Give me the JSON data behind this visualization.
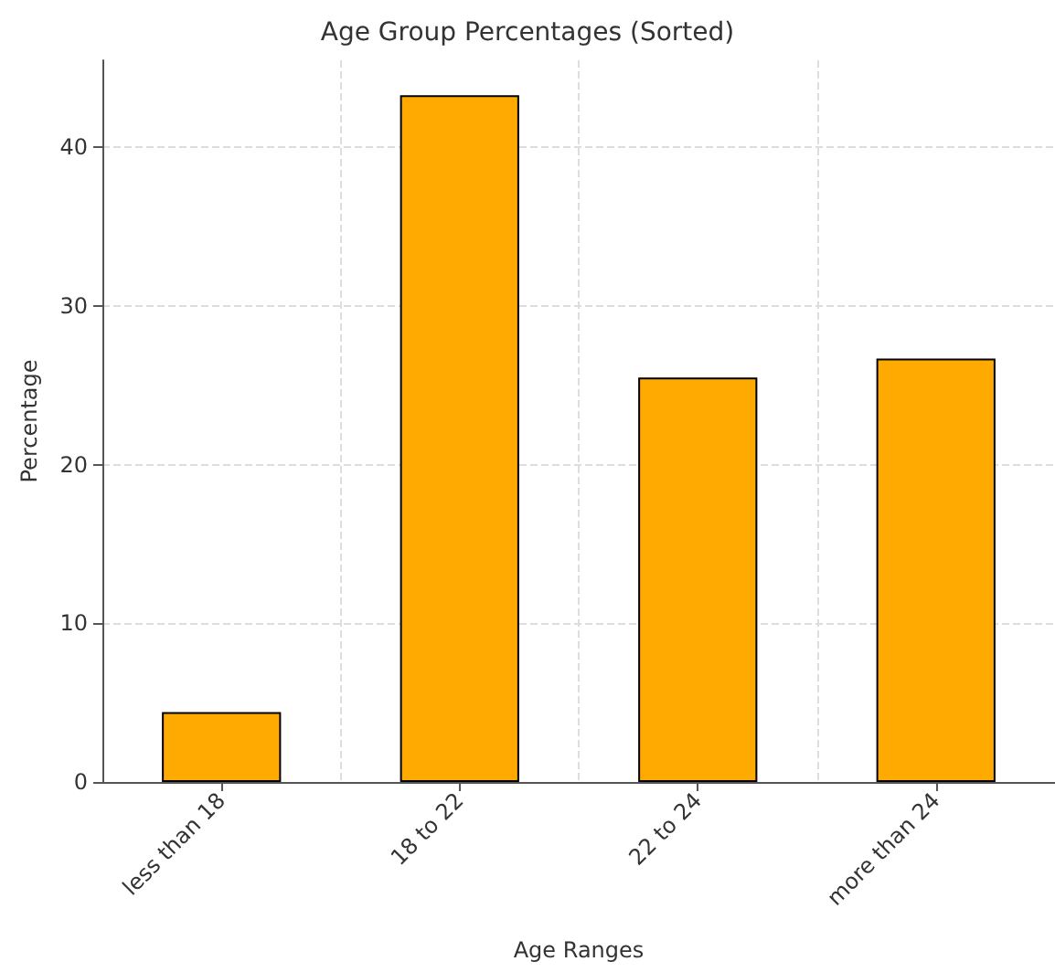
{
  "chart_data": {
    "type": "bar",
    "title": "Age Group Percentages (Sorted)",
    "xlabel": "Age Ranges",
    "ylabel": "Percentage",
    "categories": [
      "less than 18",
      "18 to 22",
      "22 to 24",
      "more than 24"
    ],
    "values": [
      4.4,
      43.3,
      25.5,
      26.7
    ],
    "color": "#ffaa00",
    "ylim": [
      0,
      45.5
    ],
    "yticks": [
      0,
      10,
      20,
      30,
      40
    ],
    "grid": true
  }
}
